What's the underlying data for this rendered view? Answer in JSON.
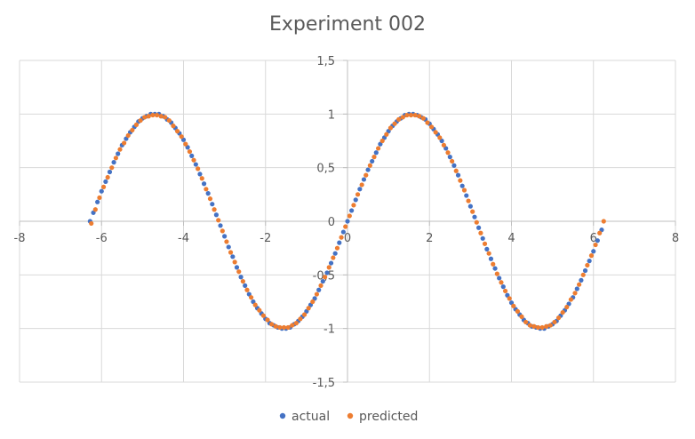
{
  "chart_data": {
    "type": "scatter",
    "title": "Experiment 002",
    "xlabel": "",
    "ylabel": "",
    "xlim": [
      -8,
      8
    ],
    "ylim": [
      -1.5,
      1.5
    ],
    "x_ticks": [
      "-8",
      "-6",
      "-4",
      "-2",
      "0",
      "2",
      "4",
      "6",
      "8"
    ],
    "y_ticks": [
      "1,5",
      "1",
      "0,5",
      "0",
      "-0,5",
      "-1",
      "-1,5"
    ],
    "x_tick_values": [
      -8,
      -6,
      -4,
      -2,
      0,
      2,
      4,
      6,
      8
    ],
    "y_tick_values": [
      1.5,
      1,
      0.5,
      0,
      -0.5,
      -1,
      -1.5
    ],
    "grid": true,
    "legend_position": "bottom",
    "series": [
      {
        "name": "actual",
        "color": "#4472C4",
        "x": [
          -6.28,
          -6.2,
          -6.1,
          -6.0,
          -5.9,
          -5.8,
          -5.7,
          -5.6,
          -5.5,
          -5.4,
          -5.3,
          -5.2,
          -5.1,
          -5.0,
          -4.9,
          -4.8,
          -4.7,
          -4.6,
          -4.5,
          -4.4,
          -4.3,
          -4.2,
          -4.1,
          -4.0,
          -3.9,
          -3.8,
          -3.7,
          -3.6,
          -3.5,
          -3.4,
          -3.3,
          -3.2,
          -3.1,
          -3.0,
          -2.9,
          -2.8,
          -2.7,
          -2.6,
          -2.5,
          -2.4,
          -2.3,
          -2.2,
          -2.1,
          -2.0,
          -1.9,
          -1.8,
          -1.7,
          -1.6,
          -1.5,
          -1.4,
          -1.3,
          -1.2,
          -1.1,
          -1.0,
          -0.9,
          -0.8,
          -0.7,
          -0.6,
          -0.5,
          -0.4,
          -0.3,
          -0.2,
          -0.1,
          0.0,
          0.1,
          0.2,
          0.3,
          0.4,
          0.5,
          0.6,
          0.7,
          0.8,
          0.9,
          1.0,
          1.1,
          1.2,
          1.3,
          1.4,
          1.5,
          1.6,
          1.7,
          1.8,
          1.9,
          2.0,
          2.1,
          2.2,
          2.3,
          2.4,
          2.5,
          2.6,
          2.7,
          2.8,
          2.9,
          3.0,
          3.1,
          3.2,
          3.3,
          3.4,
          3.5,
          3.6,
          3.7,
          3.8,
          3.9,
          4.0,
          4.1,
          4.2,
          4.3,
          4.4,
          4.5,
          4.6,
          4.7,
          4.8,
          4.9,
          5.0,
          5.1,
          5.2,
          5.3,
          5.4,
          5.5,
          5.6,
          5.7,
          5.8,
          5.9,
          6.0,
          6.1,
          6.2
        ],
        "y": [
          0.0,
          0.08,
          0.18,
          0.28,
          0.37,
          0.46,
          0.55,
          0.63,
          0.71,
          0.77,
          0.83,
          0.88,
          0.93,
          0.96,
          0.98,
          1.0,
          1.0,
          1.0,
          0.98,
          0.95,
          0.92,
          0.87,
          0.82,
          0.76,
          0.69,
          0.61,
          0.53,
          0.44,
          0.35,
          0.26,
          0.16,
          0.06,
          -0.04,
          -0.14,
          -0.24,
          -0.33,
          -0.43,
          -0.52,
          -0.6,
          -0.68,
          -0.75,
          -0.81,
          -0.86,
          -0.91,
          -0.95,
          -0.97,
          -0.99,
          -1.0,
          -1.0,
          -0.99,
          -0.96,
          -0.93,
          -0.89,
          -0.84,
          -0.78,
          -0.72,
          -0.64,
          -0.56,
          -0.48,
          -0.39,
          -0.3,
          -0.2,
          -0.1,
          0.0,
          0.1,
          0.2,
          0.3,
          0.39,
          0.48,
          0.56,
          0.64,
          0.72,
          0.78,
          0.84,
          0.89,
          0.93,
          0.96,
          0.99,
          1.0,
          1.0,
          0.99,
          0.97,
          0.95,
          0.91,
          0.86,
          0.81,
          0.75,
          0.68,
          0.6,
          0.52,
          0.43,
          0.33,
          0.24,
          0.14,
          0.04,
          -0.06,
          -0.16,
          -0.26,
          -0.35,
          -0.44,
          -0.53,
          -0.61,
          -0.69,
          -0.76,
          -0.82,
          -0.87,
          -0.92,
          -0.95,
          -0.98,
          -0.99,
          -1.0,
          -1.0,
          -0.98,
          -0.96,
          -0.93,
          -0.88,
          -0.83,
          -0.77,
          -0.71,
          -0.63,
          -0.55,
          -0.46,
          -0.37,
          -0.28,
          -0.18,
          -0.08
        ]
      },
      {
        "name": "predicted",
        "color": "#ED7D31",
        "x": [
          -6.25,
          -6.15,
          -6.05,
          -5.95,
          -5.85,
          -5.75,
          -5.65,
          -5.55,
          -5.45,
          -5.35,
          -5.25,
          -5.15,
          -5.05,
          -4.95,
          -4.85,
          -4.75,
          -4.65,
          -4.55,
          -4.45,
          -4.35,
          -4.25,
          -4.15,
          -4.05,
          -3.95,
          -3.85,
          -3.75,
          -3.65,
          -3.55,
          -3.45,
          -3.35,
          -3.25,
          -3.15,
          -3.05,
          -2.95,
          -2.85,
          -2.75,
          -2.65,
          -2.55,
          -2.45,
          -2.35,
          -2.25,
          -2.15,
          -2.05,
          -1.95,
          -1.85,
          -1.75,
          -1.65,
          -1.55,
          -1.45,
          -1.35,
          -1.25,
          -1.15,
          -1.05,
          -0.95,
          -0.85,
          -0.75,
          -0.65,
          -0.55,
          -0.45,
          -0.35,
          -0.25,
          -0.15,
          -0.05,
          0.05,
          0.15,
          0.25,
          0.35,
          0.45,
          0.55,
          0.65,
          0.75,
          0.85,
          0.95,
          1.05,
          1.15,
          1.25,
          1.35,
          1.45,
          1.55,
          1.65,
          1.75,
          1.85,
          1.95,
          2.05,
          2.15,
          2.25,
          2.35,
          2.45,
          2.55,
          2.65,
          2.75,
          2.85,
          2.95,
          3.05,
          3.15,
          3.25,
          3.35,
          3.45,
          3.55,
          3.65,
          3.75,
          3.85,
          3.95,
          4.05,
          4.15,
          4.25,
          4.35,
          4.45,
          4.55,
          4.65,
          4.75,
          4.85,
          4.95,
          5.05,
          5.15,
          5.25,
          5.35,
          5.45,
          5.55,
          5.65,
          5.75,
          5.85,
          5.95,
          6.05,
          6.15,
          6.25
        ],
        "y": [
          -0.02,
          0.11,
          0.22,
          0.32,
          0.41,
          0.5,
          0.59,
          0.67,
          0.73,
          0.8,
          0.85,
          0.9,
          0.94,
          0.97,
          0.98,
          0.99,
          0.99,
          0.98,
          0.97,
          0.94,
          0.89,
          0.84,
          0.79,
          0.72,
          0.65,
          0.57,
          0.49,
          0.4,
          0.3,
          0.21,
          0.11,
          0.01,
          -0.09,
          -0.19,
          -0.29,
          -0.38,
          -0.47,
          -0.56,
          -0.64,
          -0.71,
          -0.78,
          -0.83,
          -0.88,
          -0.92,
          -0.96,
          -0.98,
          -0.99,
          -0.99,
          -0.99,
          -0.97,
          -0.95,
          -0.91,
          -0.87,
          -0.81,
          -0.75,
          -0.68,
          -0.6,
          -0.52,
          -0.43,
          -0.34,
          -0.25,
          -0.15,
          -0.05,
          0.05,
          0.15,
          0.25,
          0.34,
          0.43,
          0.52,
          0.6,
          0.68,
          0.75,
          0.81,
          0.87,
          0.91,
          0.95,
          0.97,
          0.99,
          0.99,
          0.99,
          0.98,
          0.96,
          0.92,
          0.88,
          0.83,
          0.78,
          0.71,
          0.64,
          0.56,
          0.47,
          0.38,
          0.29,
          0.19,
          0.09,
          -0.01,
          -0.11,
          -0.21,
          -0.3,
          -0.4,
          -0.49,
          -0.57,
          -0.65,
          -0.72,
          -0.79,
          -0.84,
          -0.89,
          -0.94,
          -0.97,
          -0.98,
          -0.99,
          -0.99,
          -0.98,
          -0.97,
          -0.94,
          -0.9,
          -0.85,
          -0.8,
          -0.73,
          -0.67,
          -0.59,
          -0.5,
          -0.41,
          -0.32,
          -0.22,
          -0.11,
          0.0
        ]
      }
    ]
  }
}
